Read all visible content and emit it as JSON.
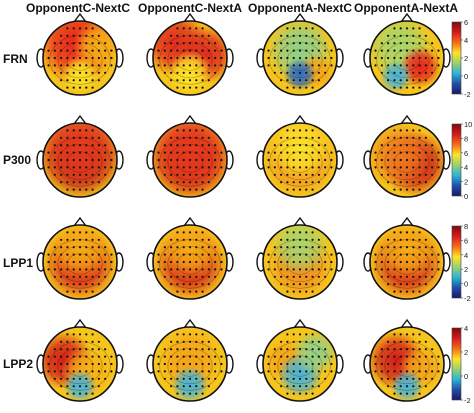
{
  "columns": [
    {
      "label": "OpponentC-NextC"
    },
    {
      "label": "OpponentC-NextA"
    },
    {
      "label": "OpponentA-NextC"
    },
    {
      "label": "OpponentA-NextA"
    }
  ],
  "rows": [
    {
      "label": "FRN",
      "scale_ticks": [
        "6",
        "4",
        "2",
        "0",
        "-2"
      ],
      "maps": [
        {
          "blobs": [
            [
              "#e8221c",
              0.45,
              0.3,
              0.55
            ],
            [
              "#f7b018",
              0.75,
              0.35,
              0.35
            ],
            [
              "#fde428",
              0.5,
              0.72,
              0.25
            ]
          ]
        },
        {
          "blobs": [
            [
              "#e02a1e",
              0.3,
              0.3,
              0.45
            ],
            [
              "#e02a1e",
              0.72,
              0.45,
              0.4
            ],
            [
              "#fde428",
              0.5,
              0.7,
              0.3
            ]
          ]
        },
        {
          "blobs": [
            [
              "#8fd08a",
              0.5,
              0.4,
              0.45
            ],
            [
              "#f5a31a",
              0.72,
              0.68,
              0.25
            ],
            [
              "#2f6bbf",
              0.5,
              0.72,
              0.22
            ]
          ]
        },
        {
          "blobs": [
            [
              "#a7d66b",
              0.4,
              0.35,
              0.45
            ],
            [
              "#e8221c",
              0.68,
              0.62,
              0.28
            ],
            [
              "#46b3d9",
              0.35,
              0.75,
              0.22
            ]
          ]
        }
      ]
    },
    {
      "label": "P300",
      "scale_ticks": [
        "10",
        "8",
        "6",
        "4",
        "2",
        "0"
      ],
      "maps": [
        {
          "blobs": [
            [
              "#b01414",
              0.5,
              0.48,
              0.55
            ],
            [
              "#e63a1e",
              0.5,
              0.35,
              0.6
            ]
          ]
        },
        {
          "blobs": [
            [
              "#c41818",
              0.5,
              0.5,
              0.55
            ],
            [
              "#e63a1e",
              0.5,
              0.4,
              0.6
            ]
          ]
        },
        {
          "blobs": [
            [
              "#f08a20",
              0.5,
              0.48,
              0.5
            ],
            [
              "#fde428",
              0.5,
              0.35,
              0.45
            ]
          ]
        },
        {
          "blobs": [
            [
              "#cc1c18",
              0.62,
              0.55,
              0.45
            ],
            [
              "#f07a1e",
              0.4,
              0.45,
              0.45
            ]
          ]
        }
      ]
    },
    {
      "label": "LPP1",
      "scale_ticks": [
        "8",
        "6",
        "4",
        "2",
        "0",
        "-2"
      ],
      "maps": [
        {
          "blobs": [
            [
              "#d41d19",
              0.5,
              0.52,
              0.5
            ],
            [
              "#f7b018",
              0.5,
              0.3,
              0.45
            ]
          ]
        },
        {
          "blobs": [
            [
              "#d41d19",
              0.5,
              0.52,
              0.5
            ],
            [
              "#f7b018",
              0.5,
              0.3,
              0.45
            ]
          ]
        },
        {
          "blobs": [
            [
              "#f08a20",
              0.5,
              0.55,
              0.45
            ],
            [
              "#a7d66b",
              0.5,
              0.28,
              0.4
            ]
          ]
        },
        {
          "blobs": [
            [
              "#d41d19",
              0.5,
              0.52,
              0.5
            ],
            [
              "#f7b018",
              0.5,
              0.32,
              0.45
            ]
          ]
        }
      ]
    },
    {
      "label": "LPP2",
      "scale_ticks": [
        "4",
        "2",
        "0",
        "-2"
      ],
      "maps": [
        {
          "blobs": [
            [
              "#d41d19",
              0.28,
              0.45,
              0.4
            ],
            [
              "#f7b018",
              0.6,
              0.6,
              0.35
            ],
            [
              "#46b3d9",
              0.5,
              0.8,
              0.22
            ]
          ]
        },
        {
          "blobs": [
            [
              "#f5a31a",
              0.5,
              0.45,
              0.45
            ],
            [
              "#46b3d9",
              0.5,
              0.78,
              0.25
            ]
          ]
        },
        {
          "blobs": [
            [
              "#f5a31a",
              0.3,
              0.45,
              0.3
            ],
            [
              "#46b3d9",
              0.5,
              0.65,
              0.3
            ],
            [
              "#8fd08a",
              0.7,
              0.35,
              0.3
            ]
          ]
        },
        {
          "blobs": [
            [
              "#d41d19",
              0.35,
              0.45,
              0.4
            ],
            [
              "#f5a31a",
              0.7,
              0.55,
              0.3
            ],
            [
              "#46b3d9",
              0.5,
              0.8,
              0.22
            ]
          ]
        }
      ]
    }
  ],
  "colormap": [
    "#7a0a0a",
    "#d7191c",
    "#f46d1a",
    "#fde428",
    "#9bd16c",
    "#2bb4d6",
    "#1f4fa8",
    "#1a1a66"
  ]
}
